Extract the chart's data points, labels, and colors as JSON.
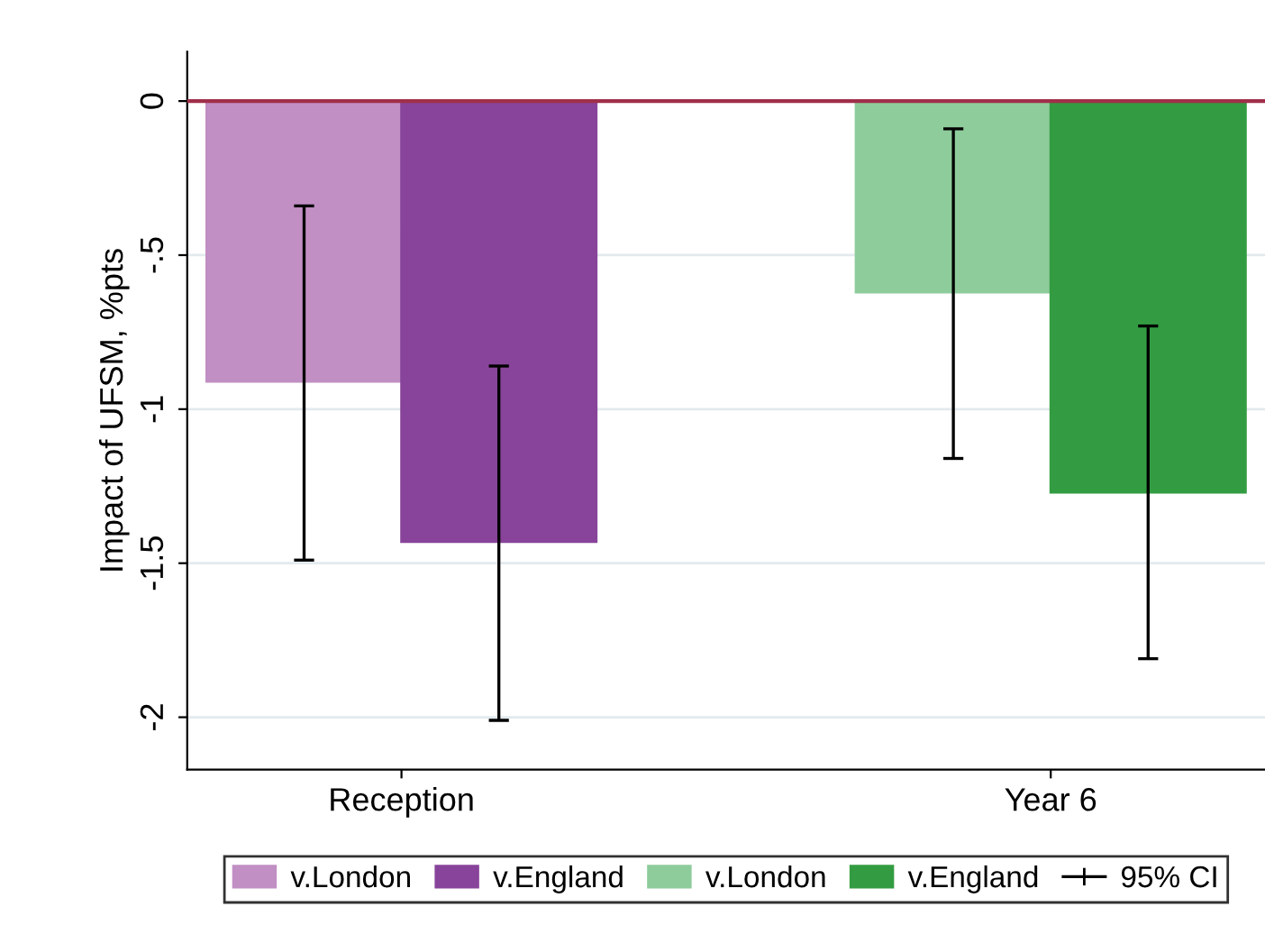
{
  "chart_data": {
    "type": "bar",
    "ylabel": "Impact of UFSM, %pts",
    "categories": [
      "Reception",
      "Year 6"
    ],
    "series": [
      {
        "name": "v.London",
        "color": "#c18fc4",
        "values": [
          -0.91,
          null
        ],
        "errors": [
          [
            -1.49,
            -0.34
          ],
          null
        ]
      },
      {
        "name": "v.England",
        "color": "#88449a",
        "values": [
          -1.43,
          null
        ],
        "errors": [
          [
            -2.01,
            -0.86
          ],
          null
        ]
      },
      {
        "name": "v.London",
        "color": "#8ecc9b",
        "values": [
          null,
          -0.62
        ],
        "errors": [
          null,
          [
            -1.16,
            -0.09
          ]
        ]
      },
      {
        "name": "v.England",
        "color": "#339c42",
        "values": [
          null,
          -1.27
        ],
        "errors": [
          null,
          [
            -1.81,
            -0.73
          ]
        ]
      }
    ],
    "ylim": [
      -2.17,
      0.16
    ],
    "yticks": [
      {
        "value": 0,
        "label": "0"
      },
      {
        "value": -0.5,
        "label": "-.5"
      },
      {
        "value": -1,
        "label": "-1"
      },
      {
        "value": -1.5,
        "label": "-1.5"
      },
      {
        "value": -2,
        "label": "-2"
      }
    ],
    "ref_lines": [
      {
        "axis": "y",
        "value": 0,
        "color": "#a0304a"
      }
    ],
    "annotations": [
      "95% CI"
    ],
    "grid": "y",
    "legend": "bottom"
  }
}
